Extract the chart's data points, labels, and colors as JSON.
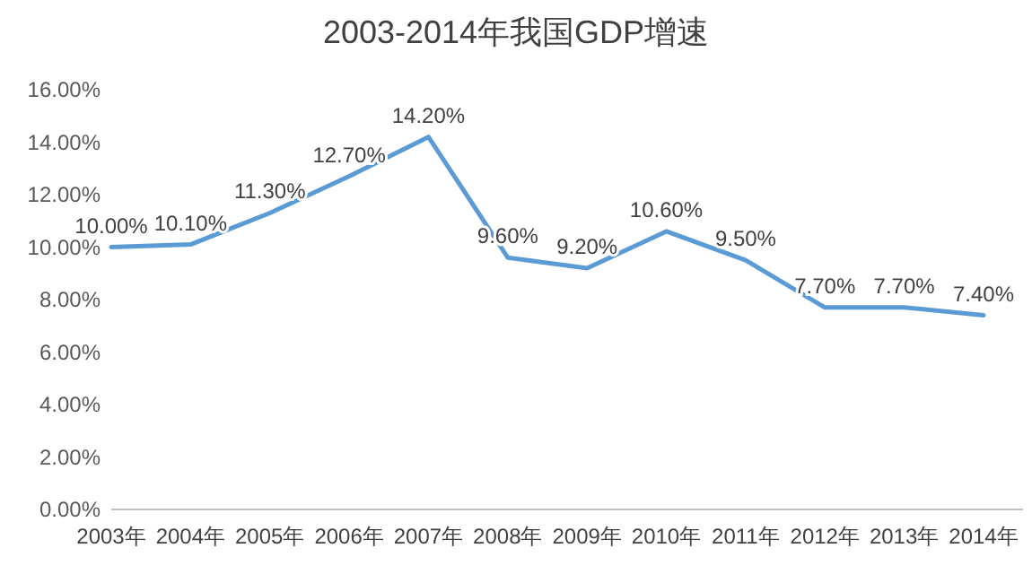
{
  "chart_data": {
    "type": "line",
    "title": "2003-2014年我国GDP增速",
    "categories": [
      "2003年",
      "2004年",
      "2005年",
      "2006年",
      "2007年",
      "2008年",
      "2009年",
      "2010年",
      "2011年",
      "2012年",
      "2013年",
      "2014年"
    ],
    "series": [
      {
        "color": "#5b9bd5",
        "values": [
          10.0,
          10.1,
          11.3,
          12.7,
          14.2,
          9.6,
          9.2,
          10.6,
          9.5,
          7.7,
          7.7,
          7.4
        ],
        "value_labels": [
          "10.00%",
          "10.10%",
          "11.30%",
          "12.70%",
          "14.20%",
          "9.60%",
          "9.20%",
          "10.60%",
          "9.50%",
          "7.70%",
          "7.70%",
          "7.40%"
        ]
      }
    ],
    "ylim": [
      0,
      16
    ],
    "yticks": [
      {
        "value": 0,
        "label": "0.00%"
      },
      {
        "value": 2,
        "label": "2.00%"
      },
      {
        "value": 4,
        "label": "4.00%"
      },
      {
        "value": 6,
        "label": "6.00%"
      },
      {
        "value": 8,
        "label": "8.00%"
      },
      {
        "value": 10,
        "label": "10.00%"
      },
      {
        "value": 12,
        "label": "12.00%"
      },
      {
        "value": 14,
        "label": "14.00%"
      },
      {
        "value": 16,
        "label": "16.00%"
      }
    ],
    "grid": false,
    "marker": "none",
    "line_style": "solid"
  }
}
